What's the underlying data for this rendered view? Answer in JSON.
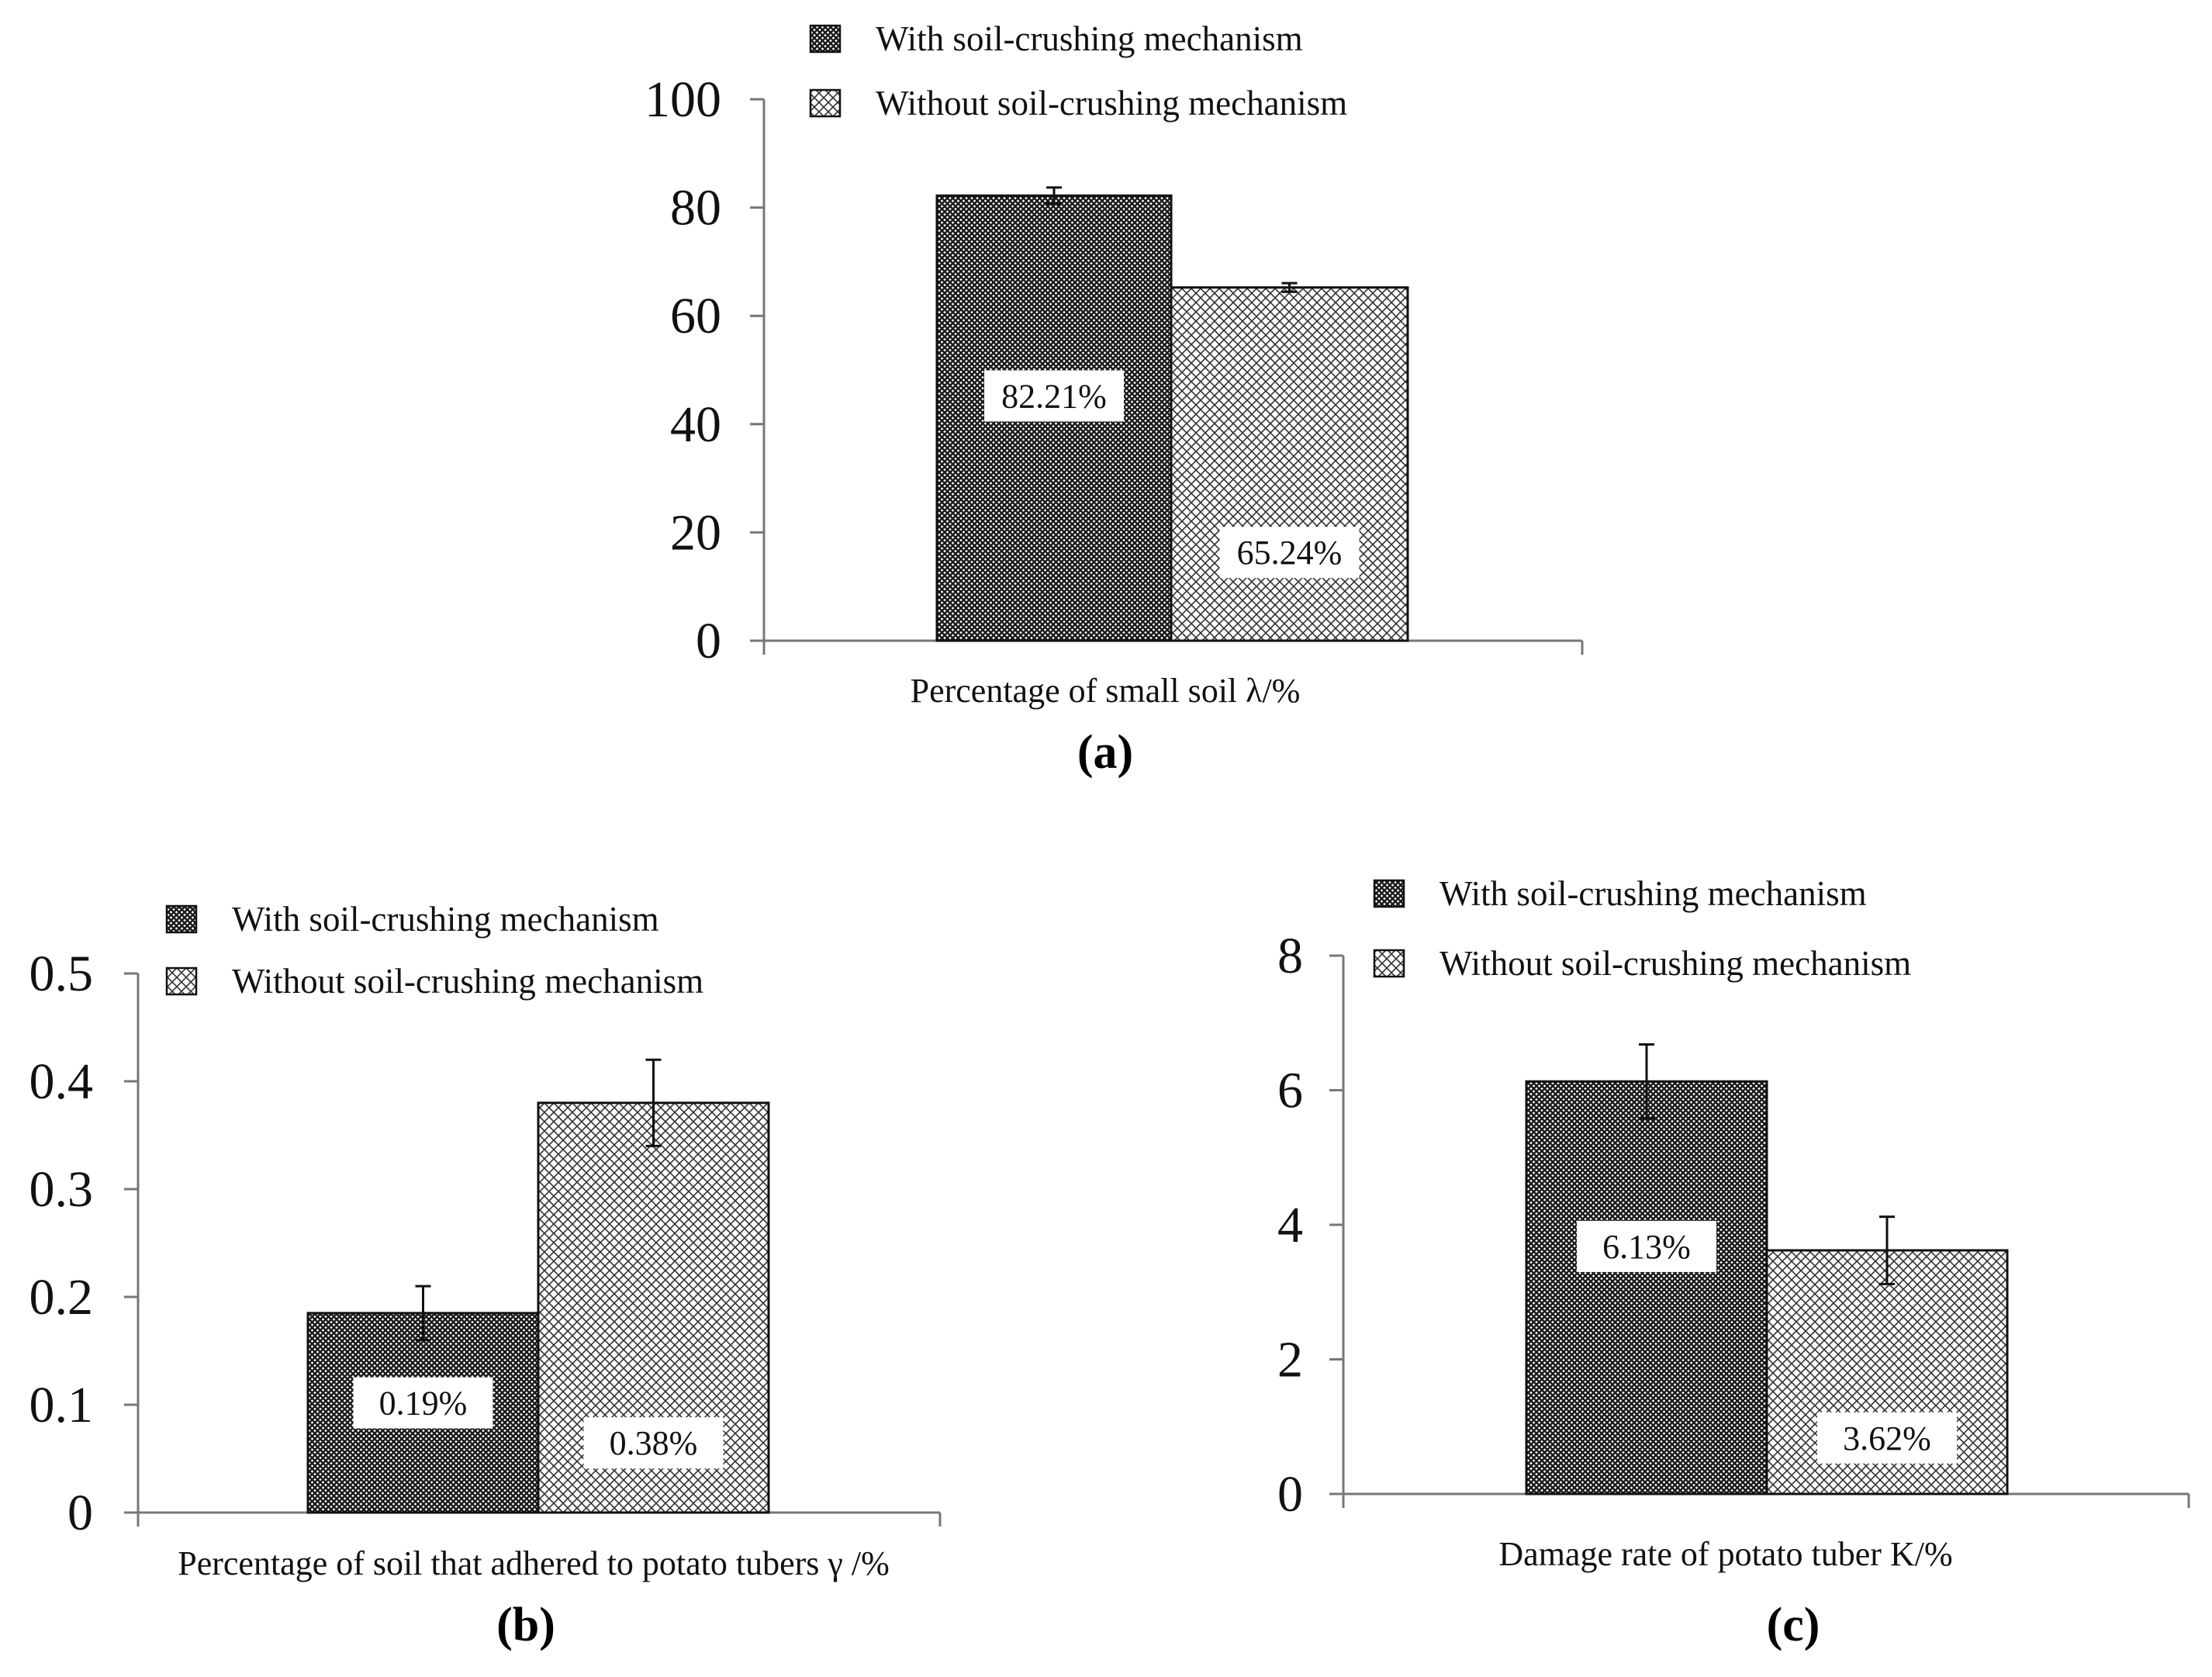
{
  "legend": {
    "with": "With soil-crushing mechanism",
    "without": "Without soil-crushing mechanism"
  },
  "chart_data": [
    {
      "type": "bar",
      "panel_label": "(a)",
      "xlabel": "Percentage of small soil λ/%",
      "categories": [
        "Percentage of small soil λ/%"
      ],
      "ylim": [
        0,
        100
      ],
      "yticks": [
        "0",
        "20",
        "40",
        "60",
        "80",
        "100"
      ],
      "series": [
        {
          "name": "With soil-crushing mechanism",
          "values": [
            82.21
          ],
          "error": [
            1.5
          ],
          "label": "82.21%"
        },
        {
          "name": "Without soil-crushing mechanism",
          "values": [
            65.24
          ],
          "error": [
            0.8
          ],
          "label": "65.24%"
        }
      ]
    },
    {
      "type": "bar",
      "panel_label": "(b)",
      "xlabel": "Percentage of soil that adhered to potato tubers  γ /%",
      "categories": [
        "Percentage of soil that adhered to potato tubers γ /%"
      ],
      "ylim": [
        0,
        0.5
      ],
      "yticks": [
        "0",
        "0.1",
        "0.2",
        "0.3",
        "0.4",
        "0.5"
      ],
      "series": [
        {
          "name": "With soil-crushing mechanism",
          "values": [
            0.185
          ],
          "error": [
            0.025
          ],
          "label": "0.19%"
        },
        {
          "name": "Without soil-crushing mechanism",
          "values": [
            0.38
          ],
          "error": [
            0.04
          ],
          "label": "0.38%"
        }
      ]
    },
    {
      "type": "bar",
      "panel_label": "(c)",
      "xlabel": "Damage rate of potato tuber K/%",
      "categories": [
        "Damage rate of potato tuber K/%"
      ],
      "ylim": [
        0,
        8
      ],
      "yticks": [
        "0",
        "2",
        "4",
        "6",
        "8"
      ],
      "series": [
        {
          "name": "With soil-crushing mechanism",
          "values": [
            6.13
          ],
          "error": [
            0.55
          ],
          "label": "6.13%"
        },
        {
          "name": "Without soil-crushing mechanism",
          "values": [
            3.62
          ],
          "error": [
            0.5
          ],
          "label": "3.62%"
        }
      ]
    }
  ]
}
